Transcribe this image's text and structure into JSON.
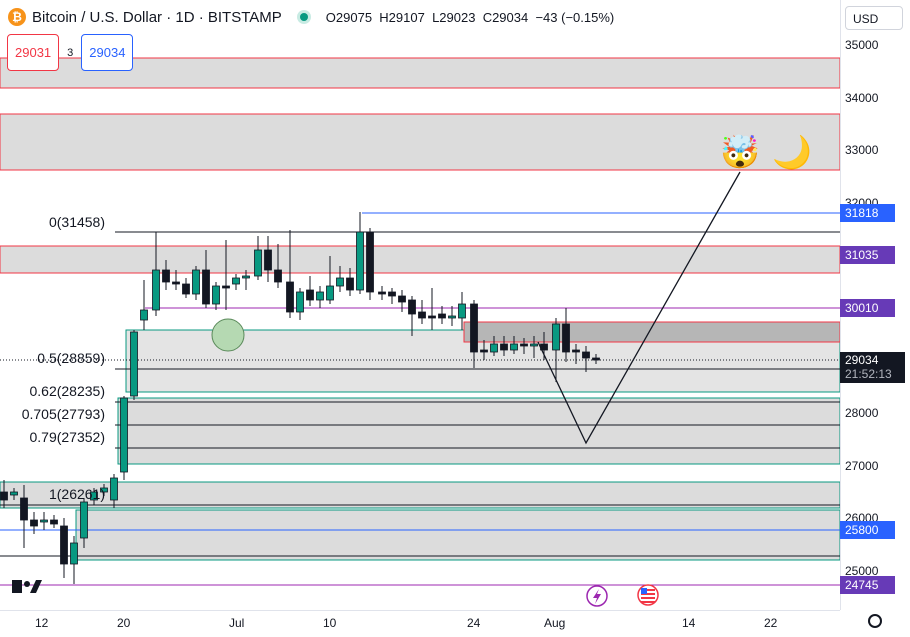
{
  "legend": {
    "coin_glyph": "₿",
    "title": "Bitcoin / U.S. Dollar · 1D · BITSTAMP",
    "open": "O29075",
    "high": "H29107",
    "low": "L29023",
    "close": "C29034",
    "change": "−43 (−0.15%)"
  },
  "order": {
    "sell": "29031",
    "spread": "3",
    "buy": "29034"
  },
  "currency": "USD",
  "price_axis": [
    "35000",
    "34000",
    "33000",
    "32000",
    "28000",
    "27000",
    "26000",
    "25000"
  ],
  "price_tags": {
    "t31818": "31818",
    "t31035": "31035",
    "t30010": "30010",
    "current": "29034",
    "countdown": "21:52:13",
    "t25800": "25800",
    "t24745": "24745"
  },
  "fib_labels": {
    "f0": "0(31458)",
    "f05": "0.5(28859)",
    "f062": "0.62(28235)",
    "f0705": "0.705(27793)",
    "f079": "0.79(27352)",
    "f1": "1(26261)"
  },
  "time_axis": [
    "12",
    "20",
    "Jul",
    "10",
    "24",
    "Aug",
    "14",
    "22"
  ],
  "emojis": {
    "mind_blown": "🤯",
    "moon": "🌙"
  },
  "icons": [
    "bitcoin-icon",
    "market-open-dot-icon",
    "tradingview-logo-icon",
    "dividend-event-icon",
    "us-flag-event-icon",
    "settings-gear-icon"
  ],
  "colors": {
    "up": "#089981",
    "down": "#f23645",
    "candle_up_fill": "#089981",
    "zone_gray": "#dcdcdc",
    "blue_line": "#2962ff",
    "purple": "#673ab7"
  }
}
